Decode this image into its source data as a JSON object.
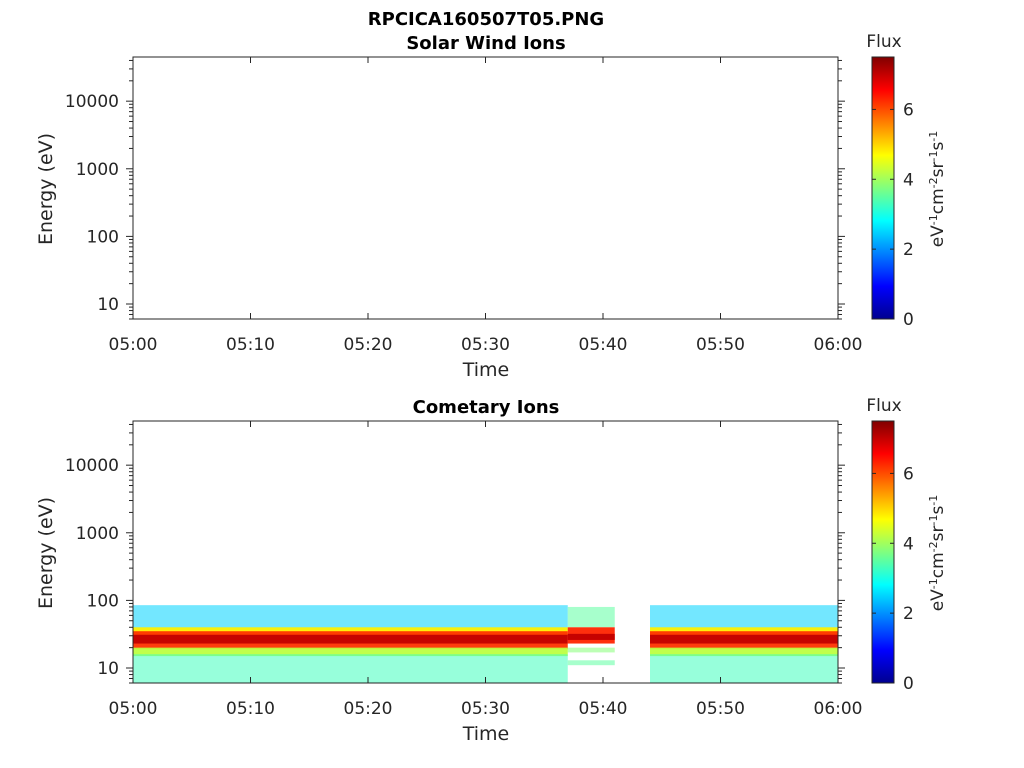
{
  "figure": {
    "title": "RPCICA160507T05.PNG"
  },
  "chart_data": [
    {
      "type": "heatmap",
      "title": "Solar Wind Ions",
      "xlabel": "Time",
      "ylabel": "Energy (eV)",
      "x_ticks": [
        "05:00",
        "05:10",
        "05:20",
        "05:30",
        "05:40",
        "05:50",
        "06:00"
      ],
      "xlim": [
        "05:00",
        "06:00"
      ],
      "y_scale": "log",
      "y_ticks": [
        10,
        100,
        1000,
        10000
      ],
      "ylim": [
        6,
        45000
      ],
      "colorbar": {
        "label": "Flux",
        "units": "eV-1cm-2sr-1s-1",
        "ticks": [
          0,
          2,
          4,
          6
        ],
        "range": [
          0,
          7.5
        ]
      },
      "bands": []
    },
    {
      "type": "heatmap",
      "title": "Cometary Ions",
      "xlabel": "Time",
      "ylabel": "Energy (eV)",
      "x_ticks": [
        "05:00",
        "05:10",
        "05:20",
        "05:30",
        "05:40",
        "05:50",
        "06:00"
      ],
      "xlim": [
        "05:00",
        "06:00"
      ],
      "y_scale": "log",
      "y_ticks": [
        10,
        100,
        1000,
        10000
      ],
      "ylim": [
        6,
        45000
      ],
      "colorbar": {
        "label": "Flux",
        "units": "eV-1cm-2sr-1s-1",
        "ticks": [
          0,
          2,
          4,
          6
        ],
        "range": [
          0,
          7.5
        ]
      },
      "data_gap": [
        "05:41",
        "05:44"
      ],
      "bands": [
        {
          "x": [
            "05:00",
            "05:37"
          ],
          "energy": [
            36,
            85
          ],
          "flux": 2.5
        },
        {
          "x": [
            "05:00",
            "05:37"
          ],
          "energy": [
            30,
            40
          ],
          "flux": 4.8
        },
        {
          "x": [
            "05:00",
            "05:37"
          ],
          "energy": [
            19,
            35
          ],
          "flux": 6.2
        },
        {
          "x": [
            "05:00",
            "05:37"
          ],
          "energy": [
            23,
            31
          ],
          "flux": 7.0
        },
        {
          "x": [
            "05:00",
            "05:37"
          ],
          "energy": [
            15,
            20
          ],
          "flux": 4.2
        },
        {
          "x": [
            "05:00",
            "05:37"
          ],
          "energy": [
            6,
            16
          ],
          "flux": 3.3
        },
        {
          "x": [
            "05:37",
            "05:41"
          ],
          "energy": [
            40,
            80
          ],
          "flux": 3.5
        },
        {
          "x": [
            "05:37",
            "05:41"
          ],
          "energy": [
            23,
            40
          ],
          "flux": 6.3
        },
        {
          "x": [
            "05:37",
            "05:41"
          ],
          "energy": [
            26,
            32
          ],
          "flux": 7.0
        },
        {
          "x": [
            "05:37",
            "05:41"
          ],
          "energy": [
            17,
            20
          ],
          "flux": 3.8
        },
        {
          "x": [
            "05:37",
            "05:41"
          ],
          "energy": [
            11,
            13
          ],
          "flux": 3.5
        },
        {
          "x": [
            "05:44",
            "06:00"
          ],
          "energy": [
            36,
            85
          ],
          "flux": 2.5
        },
        {
          "x": [
            "05:44",
            "06:00"
          ],
          "energy": [
            30,
            40
          ],
          "flux": 4.8
        },
        {
          "x": [
            "05:44",
            "06:00"
          ],
          "energy": [
            19,
            35
          ],
          "flux": 6.2
        },
        {
          "x": [
            "05:44",
            "06:00"
          ],
          "energy": [
            23,
            31
          ],
          "flux": 7.0
        },
        {
          "x": [
            "05:44",
            "06:00"
          ],
          "energy": [
            15,
            20
          ],
          "flux": 4.2
        },
        {
          "x": [
            "05:44",
            "06:00"
          ],
          "energy": [
            6,
            16
          ],
          "flux": 3.3
        }
      ]
    }
  ]
}
